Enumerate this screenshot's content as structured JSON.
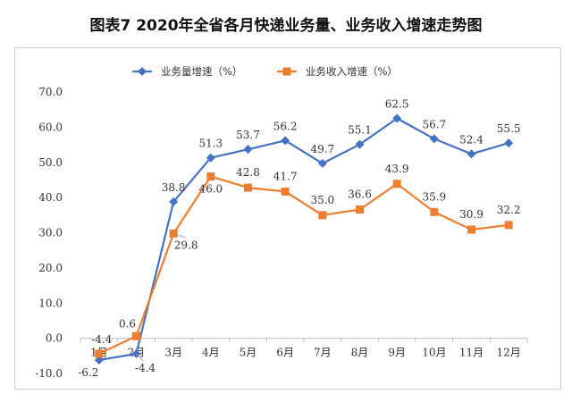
{
  "title": "图表7    2020年全省各月快递业务量、业务收入增速走势图",
  "chart_data": {
    "type": "line",
    "categories": [
      "1月",
      "2月",
      "3月",
      "4月",
      "5月",
      "6月",
      "7月",
      "8月",
      "9月",
      "10月",
      "11月",
      "12月"
    ],
    "series": [
      {
        "name": "业务量增速（%）",
        "color": "#4472C4",
        "marker": "diamond",
        "values": [
          -6.2,
          -4.4,
          38.8,
          51.3,
          53.7,
          56.2,
          49.7,
          55.1,
          62.5,
          56.7,
          52.4,
          55.5
        ],
        "labels": [
          "-6.2",
          "-4.4",
          "38.8",
          "51.3",
          "53.7",
          "56.2",
          "49.7",
          "55.1",
          "62.5",
          "56.7",
          "52.4",
          "55.5"
        ]
      },
      {
        "name": "业务收入增速（%）",
        "color": "#ED7D31",
        "marker": "square",
        "values": [
          -4.4,
          0.6,
          29.8,
          46.0,
          42.8,
          41.7,
          35.0,
          36.6,
          43.9,
          35.9,
          30.9,
          32.2
        ],
        "labels": [
          "-4.4",
          "0.6",
          "29.8",
          "46.0",
          "42.8",
          "41.7",
          "35.0",
          "36.6",
          "43.9",
          "35.9",
          "30.9",
          "32.2"
        ]
      }
    ],
    "ylim": [
      -10,
      70
    ],
    "yticks": [
      "70.0",
      "60.0",
      "50.0",
      "40.0",
      "30.0",
      "20.0",
      "10.0",
      "0.0",
      "-10.0"
    ],
    "legend": "top",
    "grid": false
  }
}
